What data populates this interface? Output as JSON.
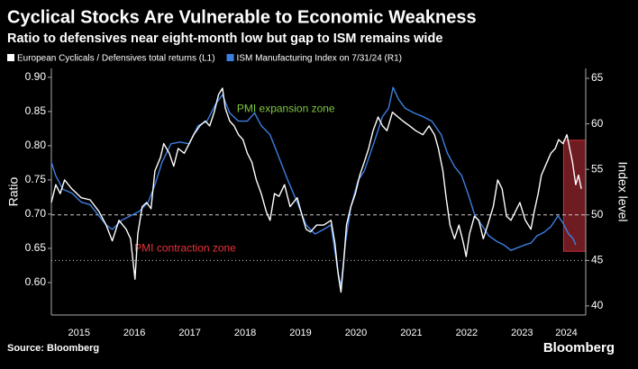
{
  "chart_data": {
    "type": "line",
    "title": "Cyclical Stocks Are Vulnerable to Economic Weakness",
    "subtitle": "Ratio to defensives near eight-month low but gap to ISM remains wide",
    "ylabel": "Ratio",
    "y2label": "Index level",
    "source": "Source: Bloomberg",
    "brand": "Bloomberg",
    "xlim": [
      2015,
      2024.65
    ],
    "xticks": [
      {
        "value": 2015.5,
        "label": "2015"
      },
      {
        "value": 2016.5,
        "label": "2016"
      },
      {
        "value": 2017.5,
        "label": "2017"
      },
      {
        "value": 2018.5,
        "label": "2018"
      },
      {
        "value": 2019.5,
        "label": "2019"
      },
      {
        "value": 2020.5,
        "label": "2020"
      },
      {
        "value": 2021.5,
        "label": "2021"
      },
      {
        "value": 2022.5,
        "label": "2022"
      },
      {
        "value": 2023.5,
        "label": "2023"
      },
      {
        "value": 2024.3,
        "label": "2024"
      }
    ],
    "ylim": [
      0.5526,
      0.913
    ],
    "yticks": [
      {
        "value": 0.6,
        "label": "0.60"
      },
      {
        "value": 0.65,
        "label": "0.65"
      },
      {
        "value": 0.7,
        "label": "0.70"
      },
      {
        "value": 0.75,
        "label": "0.75"
      },
      {
        "value": 0.8,
        "label": "0.80"
      },
      {
        "value": 0.85,
        "label": "0.85"
      },
      {
        "value": 0.9,
        "label": "0.90"
      }
    ],
    "y2lim": [
      39,
      66.09
    ],
    "y2ticks": [
      40,
      45,
      50,
      55,
      60,
      65
    ],
    "reference_lines": [
      {
        "value": 50,
        "axis": "y2",
        "style": "dashed"
      },
      {
        "value": 45,
        "axis": "y2",
        "style": "dotted"
      }
    ],
    "highlight": {
      "x": [
        2024.25,
        2024.65
      ],
      "y2": [
        46,
        58.2
      ],
      "color": "#c8323c"
    },
    "annotations": [
      {
        "text": "PMI expansion zone",
        "color": "#7ec83c",
        "x": 2018.35,
        "y2": 61.6
      },
      {
        "text": "PMI contraction zone",
        "color": "#e8333a",
        "x": 2016.5,
        "y2": 46.3
      }
    ],
    "series": [
      {
        "name": "European Cyclicals / Defensives total returns (L1)",
        "color": "#ffffff",
        "axis": "y",
        "x": [
          2015.0,
          2015.08,
          2015.16,
          2015.24,
          2015.37,
          2015.54,
          2015.7,
          2015.86,
          2015.99,
          2016.1,
          2016.22,
          2016.35,
          2016.43,
          2016.51,
          2016.56,
          2016.64,
          2016.72,
          2016.8,
          2016.87,
          2016.97,
          2017.03,
          2017.13,
          2017.21,
          2017.29,
          2017.4,
          2017.49,
          2017.57,
          2017.68,
          2017.78,
          2017.86,
          2017.94,
          2018.02,
          2018.09,
          2018.14,
          2018.22,
          2018.3,
          2018.38,
          2018.46,
          2018.54,
          2018.62,
          2018.7,
          2018.79,
          2018.88,
          2018.95,
          2019.03,
          2019.11,
          2019.21,
          2019.31,
          2019.44,
          2019.53,
          2019.6,
          2019.68,
          2019.79,
          2019.92,
          2020.05,
          2020.12,
          2020.18,
          2020.23,
          2020.28,
          2020.33,
          2020.41,
          2020.49,
          2020.57,
          2020.65,
          2020.73,
          2020.81,
          2020.9,
          2020.98,
          2021.06,
          2021.16,
          2021.26,
          2021.35,
          2021.47,
          2021.58,
          2021.71,
          2021.82,
          2021.92,
          2021.99,
          2022.07,
          2022.13,
          2022.2,
          2022.28,
          2022.36,
          2022.44,
          2022.49,
          2022.55,
          2022.64,
          2022.72,
          2022.8,
          2022.88,
          2022.98,
          2023.06,
          2023.14,
          2023.22,
          2023.3,
          2023.38,
          2023.46,
          2023.56,
          2023.66,
          2023.72,
          2023.79,
          2023.85,
          2023.95,
          2024.02,
          2024.1,
          2024.16,
          2024.24,
          2024.31,
          2024.36,
          2024.41,
          2024.47,
          2024.52,
          2024.57
        ],
        "values": [
          0.717,
          0.743,
          0.73,
          0.75,
          0.737,
          0.724,
          0.721,
          0.704,
          0.684,
          0.661,
          0.691,
          0.678,
          0.664,
          0.605,
          0.671,
          0.711,
          0.717,
          0.708,
          0.763,
          0.783,
          0.803,
          0.789,
          0.77,
          0.796,
          0.789,
          0.803,
          0.816,
          0.829,
          0.836,
          0.829,
          0.849,
          0.875,
          0.884,
          0.855,
          0.836,
          0.829,
          0.816,
          0.809,
          0.789,
          0.776,
          0.75,
          0.73,
          0.704,
          0.691,
          0.73,
          0.726,
          0.743,
          0.711,
          0.724,
          0.697,
          0.678,
          0.674,
          0.684,
          0.684,
          0.691,
          0.658,
          0.612,
          0.586,
          0.632,
          0.684,
          0.711,
          0.73,
          0.757,
          0.776,
          0.796,
          0.822,
          0.842,
          0.829,
          0.822,
          0.849,
          0.842,
          0.836,
          0.829,
          0.822,
          0.816,
          0.829,
          0.816,
          0.796,
          0.763,
          0.724,
          0.684,
          0.664,
          0.684,
          0.658,
          0.638,
          0.671,
          0.697,
          0.691,
          0.664,
          0.684,
          0.711,
          0.75,
          0.737,
          0.697,
          0.691,
          0.704,
          0.717,
          0.691,
          0.678,
          0.704,
          0.73,
          0.757,
          0.776,
          0.789,
          0.796,
          0.809,
          0.803,
          0.816,
          0.796,
          0.776,
          0.743,
          0.757,
          0.737
        ]
      },
      {
        "name": "ISM Manufacturing Index on 7/31/24 (R1)",
        "color": "#3d7fe0",
        "axis": "y2",
        "x": [
          2015.0,
          2015.08,
          2015.21,
          2015.37,
          2015.54,
          2015.7,
          2015.86,
          2015.99,
          2016.1,
          2016.27,
          2016.43,
          2016.59,
          2016.75,
          2016.87,
          2017.0,
          2017.16,
          2017.32,
          2017.49,
          2017.65,
          2017.81,
          2017.97,
          2018.09,
          2018.22,
          2018.38,
          2018.54,
          2018.67,
          2018.79,
          2018.95,
          2019.11,
          2019.27,
          2019.44,
          2019.6,
          2019.76,
          2019.92,
          2020.05,
          2020.17,
          2020.23,
          2020.31,
          2020.41,
          2020.54,
          2020.65,
          2020.82,
          2020.98,
          2021.09,
          2021.17,
          2021.27,
          2021.39,
          2021.55,
          2021.71,
          2021.87,
          2022.04,
          2022.15,
          2022.28,
          2022.41,
          2022.52,
          2022.65,
          2022.77,
          2022.9,
          2023.04,
          2023.17,
          2023.3,
          2023.42,
          2023.55,
          2023.66,
          2023.77,
          2023.9,
          2024.02,
          2024.15,
          2024.24,
          2024.34,
          2024.42,
          2024.47
        ],
        "values": [
          55.8,
          54.3,
          52.8,
          52.4,
          51.4,
          51.1,
          49.9,
          48.9,
          48.4,
          49.4,
          49.9,
          50.4,
          51.4,
          53.3,
          55.8,
          57.8,
          58.0,
          57.8,
          59.8,
          60.3,
          62.2,
          63.2,
          61.2,
          60.3,
          60.3,
          61.2,
          59.8,
          58.8,
          56.3,
          53.8,
          51.4,
          48.9,
          47.9,
          48.4,
          48.9,
          43.9,
          42.1,
          46.9,
          50.9,
          53.8,
          54.8,
          57.8,
          60.8,
          61.7,
          64.0,
          62.7,
          61.7,
          61.2,
          60.8,
          60.3,
          58.8,
          56.8,
          55.3,
          54.3,
          52.4,
          49.9,
          48.9,
          47.7,
          47.1,
          46.7,
          46.1,
          46.4,
          46.7,
          46.9,
          47.7,
          48.1,
          48.7,
          49.9,
          49.1,
          47.9,
          47.4,
          46.7
        ]
      }
    ]
  }
}
